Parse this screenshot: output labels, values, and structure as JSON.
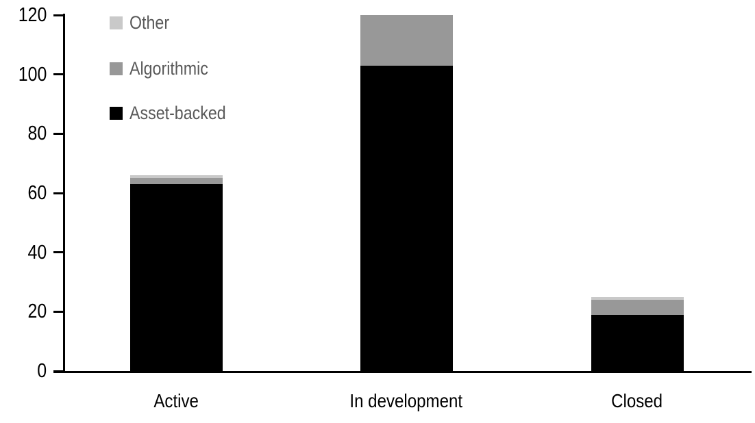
{
  "chart_data": {
    "type": "bar",
    "stacked": true,
    "title": "",
    "categories": [
      "Active",
      "In development",
      "Closed"
    ],
    "series": [
      {
        "name": "Asset-backed",
        "color": "#000000",
        "values": [
          63,
          103,
          19
        ]
      },
      {
        "name": "Algorithmic",
        "color": "#989898",
        "values": [
          2,
          17,
          5
        ]
      },
      {
        "name": "Other",
        "color": "#c9c9c9",
        "values": [
          1,
          0,
          1
        ]
      }
    ],
    "totals": [
      66,
      120,
      25
    ],
    "xlabel": "",
    "ylabel": "",
    "ylim": [
      0,
      120
    ],
    "yticks": [
      0,
      20,
      40,
      60,
      80,
      100,
      120
    ],
    "grid": "off",
    "legend": {
      "position": "top-left",
      "order_top_to_bottom": [
        "Other",
        "Algorithmic",
        "Asset-backed"
      ],
      "series_index_order": [
        2,
        1,
        0
      ],
      "text_color": "#595959"
    },
    "axis_color": "#000000",
    "tick_label_color": "#000000",
    "background": "#ffffff"
  }
}
